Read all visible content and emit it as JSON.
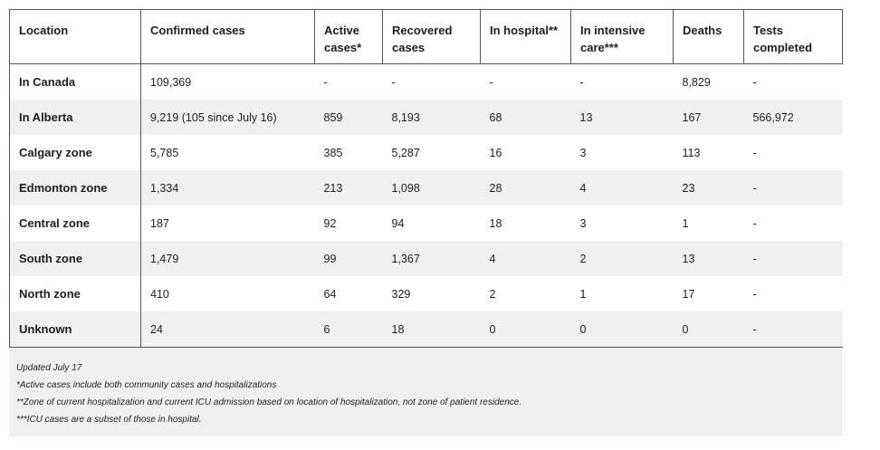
{
  "headers": [
    "Location",
    "Confirmed cases",
    "Active cases*",
    "Recovered cases",
    "In hospital**",
    "In intensive care***",
    "Deaths",
    "Tests completed"
  ],
  "rows": [
    {
      "location": "In Canada",
      "confirmed": "109,369",
      "active": "-",
      "recovered": "-",
      "hospital": "-",
      "icu": "-",
      "deaths": "8,829",
      "tests": "-"
    },
    {
      "location": "In Alberta",
      "confirmed": "9,219 (105 since July 16)",
      "active": "859",
      "recovered": "8,193",
      "hospital": "68",
      "icu": "13",
      "deaths": "167",
      "tests": "566,972"
    },
    {
      "location": "Calgary zone",
      "confirmed": "5,785",
      "active": "385",
      "recovered": "5,287",
      "hospital": "16",
      "icu": "3",
      "deaths": "113",
      "tests": "-"
    },
    {
      "location": "Edmonton zone",
      "confirmed": "1,334",
      "active": "213",
      "recovered": "1,098",
      "hospital": "28",
      "icu": "4",
      "deaths": "23",
      "tests": "-"
    },
    {
      "location": "Central zone",
      "confirmed": "187",
      "active": "92",
      "recovered": "94",
      "hospital": "18",
      "icu": "3",
      "deaths": "1",
      "tests": "-"
    },
    {
      "location": "South zone",
      "confirmed": "1,479",
      "active": "99",
      "recovered": "1,367",
      "hospital": "4",
      "icu": "2",
      "deaths": "13",
      "tests": "-"
    },
    {
      "location": "North zone",
      "confirmed": "410",
      "active": "64",
      "recovered": "329",
      "hospital": "2",
      "icu": "1",
      "deaths": "17",
      "tests": "-"
    },
    {
      "location": "Unknown",
      "confirmed": "24",
      "active": "6",
      "recovered": "18",
      "hospital": "0",
      "icu": "0",
      "deaths": "0",
      "tests": "-"
    }
  ],
  "notes": [
    "Updated July 17",
    "*Active cases include both community cases and hospitalizations",
    "**Zone of current hospitalization and current ICU admission based on location of hospitalization, not zone of patient residence.",
    "***ICU cases are a subset of those in hospital."
  ],
  "colors": {
    "shade": "#f0f0f0",
    "border": "#555555"
  }
}
